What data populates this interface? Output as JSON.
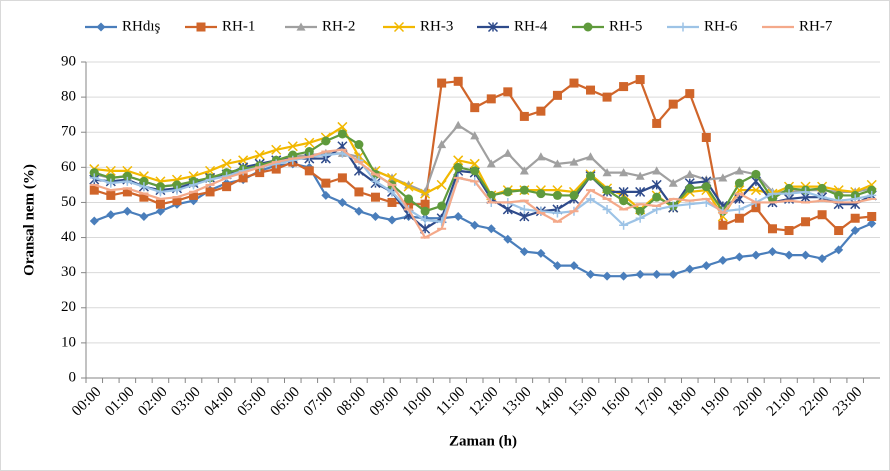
{
  "chart_data": {
    "type": "line",
    "xlabel": "Zaman (h)",
    "ylabel": "Oransal nem (%)",
    "categories": [
      "00:00",
      null,
      "01:00",
      null,
      "02:00",
      null,
      "03:00",
      null,
      "04:00",
      null,
      "05:00",
      null,
      "06:00",
      null,
      "07:00",
      null,
      "08:00",
      null,
      "09:00",
      null,
      "10:00",
      null,
      "11:00",
      null,
      "12:00",
      null,
      "13:00",
      null,
      "14:00",
      null,
      "15:00",
      null,
      "16:00",
      null,
      "17:00",
      null,
      "18:00",
      null,
      "19:00",
      null,
      "20:00",
      null,
      "21:00",
      null,
      "22:00",
      null,
      "23:00",
      null
    ],
    "ylim": [
      0,
      90
    ],
    "yticks": [
      0,
      10,
      20,
      30,
      40,
      50,
      60,
      70,
      80,
      90
    ],
    "grid": true,
    "legend": "top",
    "series": [
      {
        "name": "RHdış",
        "color": "#4a7ebb",
        "marker": "diamond",
        "values": [
          44.7,
          46.5,
          47.5,
          46,
          47.5,
          49.5,
          50.5,
          53.5,
          55.5,
          56.5,
          59,
          60.5,
          61,
          60,
          52,
          50,
          47.5,
          46,
          45,
          46,
          45.5,
          45.5,
          46,
          43.5,
          42.5,
          39.5,
          36,
          35.5,
          32,
          32,
          29.5,
          29,
          29,
          29.5,
          29.5,
          29.5,
          31,
          32,
          33.5,
          34.5,
          35,
          36,
          35,
          35,
          34,
          36.5,
          42,
          44
        ]
      },
      {
        "name": "RH-1",
        "color": "#d0652a",
        "marker": "square",
        "values": [
          53.5,
          52,
          53,
          51.5,
          49.5,
          50.5,
          52,
          53,
          54.5,
          57,
          58.5,
          59.5,
          61.5,
          59,
          55.5,
          57,
          53,
          51.5,
          50,
          49.5,
          49.5,
          84,
          84.5,
          77,
          79.5,
          81.5,
          74.5,
          76,
          80.5,
          84,
          82,
          80,
          83,
          85,
          72.5,
          78,
          81,
          68.5,
          43.5,
          45.5,
          48.5,
          42.5,
          42,
          44.5,
          46.5,
          42,
          45.5,
          46
        ]
      },
      {
        "name": "RH-2",
        "color": "#a0a0a0",
        "marker": "triangle",
        "values": [
          58,
          57,
          57.5,
          56,
          54.5,
          55,
          55.5,
          57,
          58,
          59.5,
          60.5,
          62,
          63,
          63.5,
          64,
          64,
          63,
          59,
          57,
          55,
          53,
          66.5,
          72,
          69,
          61,
          64,
          59,
          63,
          61,
          61.5,
          63,
          58.5,
          58.5,
          57.5,
          59,
          55.5,
          58,
          56.5,
          57,
          59,
          58,
          53,
          53,
          53.5,
          53.5,
          53,
          53,
          54
        ]
      },
      {
        "name": "RH-3",
        "color": "#f2b800",
        "marker": "x",
        "values": [
          59.5,
          59,
          59,
          57.5,
          56,
          56.5,
          57.5,
          59,
          61,
          62,
          63.5,
          65,
          66,
          67,
          68.5,
          71.5,
          63,
          59,
          57,
          54.5,
          52.5,
          55,
          62,
          61,
          52,
          53.5,
          53.5,
          53.5,
          53.5,
          53,
          58,
          54,
          52,
          48,
          52,
          48.5,
          53,
          53.5,
          46,
          53.5,
          53.5,
          52.5,
          54.5,
          54.5,
          54.5,
          53.5,
          53,
          55
        ]
      },
      {
        "name": "RH-4",
        "color": "#2e4a8a",
        "marker": "star",
        "values": [
          56.5,
          56,
          56.5,
          54.5,
          53.5,
          54,
          55.5,
          57,
          58,
          60,
          61,
          62,
          62.5,
          62.5,
          62.5,
          66,
          59,
          55.5,
          53,
          46.5,
          42.5,
          45.5,
          59,
          58.5,
          51,
          48,
          46,
          47.5,
          48,
          51,
          57.5,
          53,
          53,
          53,
          55,
          48.5,
          55.5,
          56,
          49,
          51,
          56,
          50,
          51,
          51.5,
          51.5,
          49.5,
          49.5,
          52
        ]
      },
      {
        "name": "RH-5",
        "color": "#5f9a3c",
        "marker": "circle",
        "values": [
          58.5,
          57,
          57.5,
          56,
          54.5,
          55,
          56,
          57,
          58.5,
          59.5,
          60.5,
          62,
          63.5,
          64.5,
          67.5,
          69.5,
          66.5,
          58,
          55,
          51,
          47.5,
          49,
          60,
          59,
          52,
          53,
          53.5,
          52.5,
          52,
          52,
          57.5,
          53.5,
          50.5,
          47.5,
          51.5,
          49,
          54,
          54.5,
          47.5,
          55.5,
          58,
          51,
          54,
          53.5,
          54,
          52,
          52,
          53.5
        ]
      },
      {
        "name": "RH-6",
        "color": "#9dc3e6",
        "marker": "plus",
        "values": [
          57,
          55.5,
          56,
          54.5,
          53,
          53.5,
          55,
          56.5,
          57.5,
          59,
          60,
          61,
          62,
          63,
          63.5,
          64,
          62,
          56,
          53,
          48,
          45,
          44.5,
          57,
          56,
          50,
          50,
          48,
          47.5,
          47,
          47.5,
          51,
          48,
          43.5,
          45.5,
          48,
          49,
          49.5,
          50,
          47.5,
          48,
          50,
          52.5,
          52.5,
          53,
          51.5,
          50.5,
          51,
          52
        ]
      },
      {
        "name": "RH-7",
        "color": "#f4a98a",
        "marker": "dash",
        "values": [
          55,
          53.5,
          54,
          52.5,
          51,
          51.5,
          53,
          55,
          57,
          58.5,
          60,
          61.5,
          62.5,
          63,
          64.5,
          65,
          61.5,
          58,
          55,
          48,
          40,
          42.5,
          57,
          56,
          50,
          50,
          50.5,
          47,
          44.5,
          47.5,
          53.5,
          51,
          48,
          49.5,
          49,
          51,
          50.5,
          51,
          47,
          52.5,
          50,
          50,
          50.5,
          50,
          50.5,
          50,
          50,
          51
        ]
      }
    ]
  }
}
